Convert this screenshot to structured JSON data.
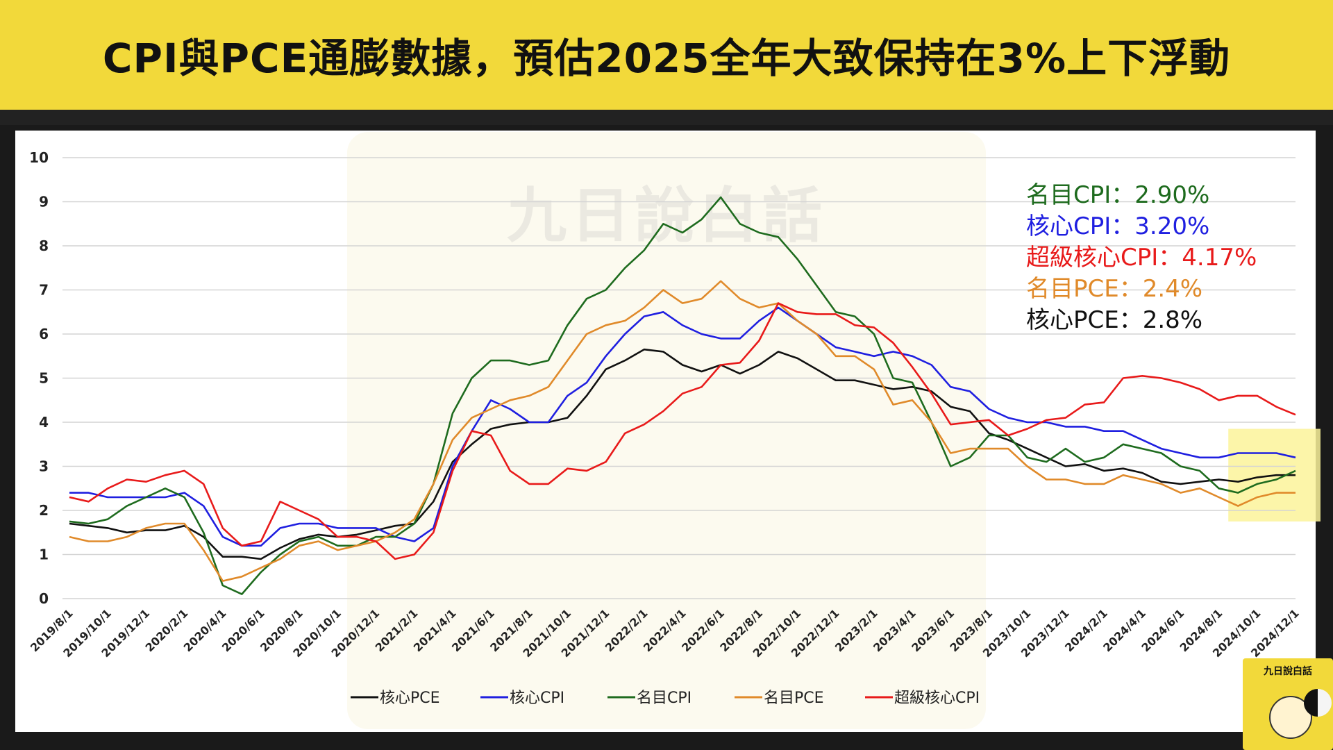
{
  "header": {
    "title": "CPI與PCE通膨數據，預估2025全年大致保持在3%上下浮動"
  },
  "watermark": {
    "brand": "九日說白話"
  },
  "corner_logo": {
    "label": "九日說白話"
  },
  "chart_data": {
    "type": "line",
    "title": "",
    "xlabel": "",
    "ylabel": "",
    "ylim": [
      0,
      10
    ],
    "yticks": [
      0,
      1,
      2,
      3,
      4,
      5,
      6,
      7,
      8,
      9,
      10
    ],
    "grid": true,
    "legend_position": "bottom-center",
    "x": [
      "2019/8/1",
      "2019/9/1",
      "2019/10/1",
      "2019/11/1",
      "2019/12/1",
      "2020/1/1",
      "2020/2/1",
      "2020/3/1",
      "2020/4/1",
      "2020/5/1",
      "2020/6/1",
      "2020/7/1",
      "2020/8/1",
      "2020/9/1",
      "2020/10/1",
      "2020/11/1",
      "2020/12/1",
      "2021/1/1",
      "2021/2/1",
      "2021/3/1",
      "2021/4/1",
      "2021/5/1",
      "2021/6/1",
      "2021/7/1",
      "2021/8/1",
      "2021/9/1",
      "2021/10/1",
      "2021/11/1",
      "2021/12/1",
      "2022/1/1",
      "2022/2/1",
      "2022/3/1",
      "2022/4/1",
      "2022/5/1",
      "2022/6/1",
      "2022/7/1",
      "2022/8/1",
      "2022/9/1",
      "2022/10/1",
      "2022/11/1",
      "2022/12/1",
      "2023/1/1",
      "2023/2/1",
      "2023/3/1",
      "2023/4/1",
      "2023/5/1",
      "2023/6/1",
      "2023/7/1",
      "2023/8/1",
      "2023/9/1",
      "2023/10/1",
      "2023/11/1",
      "2023/12/1",
      "2024/1/1",
      "2024/2/1",
      "2024/3/1",
      "2024/4/1",
      "2024/5/1",
      "2024/6/1",
      "2024/7/1",
      "2024/8/1",
      "2024/9/1",
      "2024/10/1",
      "2024/11/1",
      "2024/12/1"
    ],
    "xtick_labels": [
      "2019/8/1",
      "2019/10/1",
      "2019/12/1",
      "2020/2/1",
      "2020/4/1",
      "2020/6/1",
      "2020/8/1",
      "2020/10/1",
      "2020/12/1",
      "2021/2/1",
      "2021/4/1",
      "2021/6/1",
      "2021/8/1",
      "2021/10/1",
      "2021/12/1",
      "2022/2/1",
      "2022/4/1",
      "2022/6/1",
      "2022/8/1",
      "2022/10/1",
      "2022/12/1",
      "2023/2/1",
      "2023/4/1",
      "2023/6/1",
      "2023/8/1",
      "2023/10/1",
      "2023/12/1",
      "2024/2/1",
      "2024/4/1",
      "2024/6/1",
      "2024/8/1",
      "2024/10/1",
      "2024/12/1"
    ],
    "series": [
      {
        "name": "核心PCE",
        "color": "#111111",
        "values": [
          1.7,
          1.65,
          1.6,
          1.5,
          1.55,
          1.55,
          1.65,
          1.4,
          0.95,
          0.95,
          0.9,
          1.15,
          1.35,
          1.45,
          1.4,
          1.45,
          1.55,
          1.65,
          1.7,
          2.2,
          3.1,
          3.5,
          3.85,
          3.95,
          4.0,
          4.0,
          4.1,
          4.6,
          5.2,
          5.4,
          5.65,
          5.6,
          5.3,
          5.15,
          5.3,
          5.1,
          5.3,
          5.6,
          5.45,
          5.2,
          4.95,
          4.95,
          4.85,
          4.75,
          4.8,
          4.7,
          4.35,
          4.25,
          3.75,
          3.6,
          3.4,
          3.2,
          3.0,
          3.05,
          2.9,
          2.95,
          2.85,
          2.65,
          2.6,
          2.65,
          2.7,
          2.65,
          2.75,
          2.8,
          2.8
        ]
      },
      {
        "name": "核心CPI",
        "color": "#1f1fe0",
        "values": [
          2.4,
          2.4,
          2.3,
          2.3,
          2.3,
          2.3,
          2.4,
          2.1,
          1.4,
          1.2,
          1.2,
          1.6,
          1.7,
          1.7,
          1.6,
          1.6,
          1.6,
          1.4,
          1.3,
          1.6,
          3.0,
          3.8,
          4.5,
          4.3,
          4.0,
          4.0,
          4.6,
          4.9,
          5.5,
          6.0,
          6.4,
          6.5,
          6.2,
          6.0,
          5.9,
          5.9,
          6.3,
          6.6,
          6.3,
          6.0,
          5.7,
          5.6,
          5.5,
          5.6,
          5.5,
          5.3,
          4.8,
          4.7,
          4.3,
          4.1,
          4.0,
          4.0,
          3.9,
          3.9,
          3.8,
          3.8,
          3.6,
          3.4,
          3.3,
          3.2,
          3.2,
          3.3,
          3.3,
          3.3,
          3.2
        ]
      },
      {
        "name": "名目CPI",
        "color": "#1e6b1e",
        "values": [
          1.75,
          1.7,
          1.8,
          2.1,
          2.3,
          2.5,
          2.3,
          1.5,
          0.3,
          0.1,
          0.6,
          1.0,
          1.3,
          1.4,
          1.2,
          1.2,
          1.4,
          1.4,
          1.7,
          2.6,
          4.2,
          5.0,
          5.4,
          5.4,
          5.3,
          5.4,
          6.2,
          6.8,
          7.0,
          7.5,
          7.9,
          8.5,
          8.3,
          8.6,
          9.1,
          8.5,
          8.3,
          8.2,
          7.7,
          7.1,
          6.5,
          6.4,
          6.0,
          5.0,
          4.9,
          4.0,
          3.0,
          3.2,
          3.7,
          3.7,
          3.2,
          3.1,
          3.4,
          3.1,
          3.2,
          3.5,
          3.4,
          3.3,
          3.0,
          2.9,
          2.5,
          2.4,
          2.6,
          2.7,
          2.9
        ]
      },
      {
        "name": "名目PCE",
        "color": "#e08a2a",
        "values": [
          1.4,
          1.3,
          1.3,
          1.4,
          1.6,
          1.7,
          1.7,
          1.1,
          0.4,
          0.5,
          0.7,
          0.9,
          1.2,
          1.3,
          1.1,
          1.2,
          1.3,
          1.5,
          1.8,
          2.6,
          3.6,
          4.1,
          4.3,
          4.5,
          4.6,
          4.8,
          5.4,
          6.0,
          6.2,
          6.3,
          6.6,
          7.0,
          6.7,
          6.8,
          7.2,
          6.8,
          6.6,
          6.7,
          6.3,
          6.0,
          5.5,
          5.5,
          5.2,
          4.4,
          4.5,
          4.0,
          3.3,
          3.4,
          3.4,
          3.4,
          3.0,
          2.7,
          2.7,
          2.6,
          2.6,
          2.8,
          2.7,
          2.6,
          2.4,
          2.5,
          2.3,
          2.1,
          2.3,
          2.4,
          2.4
        ]
      },
      {
        "name": "超級核心CPI",
        "color": "#e81a1a",
        "values": [
          2.3,
          2.2,
          2.5,
          2.7,
          2.65,
          2.8,
          2.9,
          2.6,
          1.6,
          1.2,
          1.3,
          2.2,
          2.0,
          1.8,
          1.4,
          1.4,
          1.3,
          0.9,
          1.0,
          1.5,
          2.9,
          3.8,
          3.7,
          2.9,
          2.6,
          2.6,
          2.95,
          2.9,
          3.1,
          3.75,
          3.95,
          4.25,
          4.65,
          4.8,
          5.3,
          5.35,
          5.85,
          6.7,
          6.5,
          6.45,
          6.45,
          6.2,
          6.15,
          5.8,
          5.25,
          4.65,
          3.95,
          4.0,
          4.05,
          3.7,
          3.85,
          4.05,
          4.1,
          4.4,
          4.45,
          5.0,
          5.05,
          5.0,
          4.9,
          4.75,
          4.5,
          4.6,
          4.6,
          4.35,
          4.17
        ]
      }
    ],
    "annotations": [
      {
        "text": "名目CPI：2.90%",
        "color": "#1e6b1e"
      },
      {
        "text": "核心CPI：3.20%",
        "color": "#1f1fe0"
      },
      {
        "text": "超級核心CPI：4.17%",
        "color": "#e81a1a"
      },
      {
        "text": "名目PCE：2.4%",
        "color": "#e08a2a"
      },
      {
        "text": "核心PCE：2.8%",
        "color": "#111111"
      }
    ],
    "highlight_region": {
      "x_start": "2024/9/1",
      "x_end": "2024/12/1",
      "y_start": 1.75,
      "y_end": 3.85,
      "color": "#fbf39a"
    }
  }
}
